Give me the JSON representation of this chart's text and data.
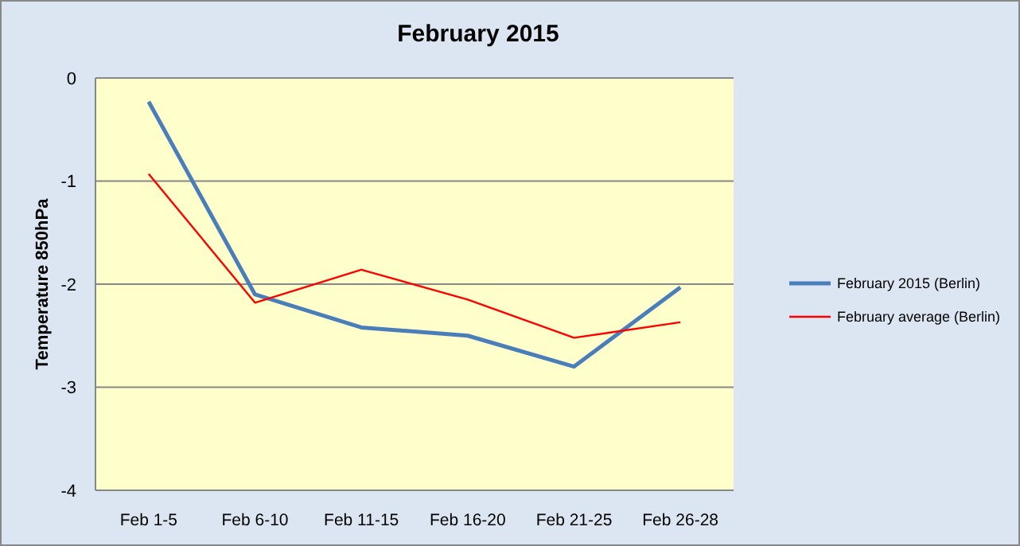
{
  "chart_data": {
    "type": "line",
    "title": "February 2015",
    "ylabel": "Temperature 850hPa",
    "categories": [
      "Feb 1-5",
      "Feb 6-10",
      "Feb 11-15",
      "Feb 16-20",
      "Feb 21-25",
      "Feb 26-28"
    ],
    "series": [
      {
        "name": "February 2015 (Berlin)",
        "color": "#4a7ebb",
        "values": [
          -0.23,
          -2.1,
          -2.42,
          -2.5,
          -2.8,
          -2.03
        ]
      },
      {
        "name": "February average (Berlin)",
        "color": "#ff0000",
        "values": [
          -0.93,
          -2.18,
          -1.86,
          -2.15,
          -2.52,
          -2.37
        ]
      }
    ],
    "ylim": [
      -4,
      0
    ],
    "yticks": [
      -4,
      -3,
      -2,
      -1,
      0
    ],
    "grid": "y",
    "legend": "right",
    "marker": "none",
    "line_style": "solid"
  }
}
